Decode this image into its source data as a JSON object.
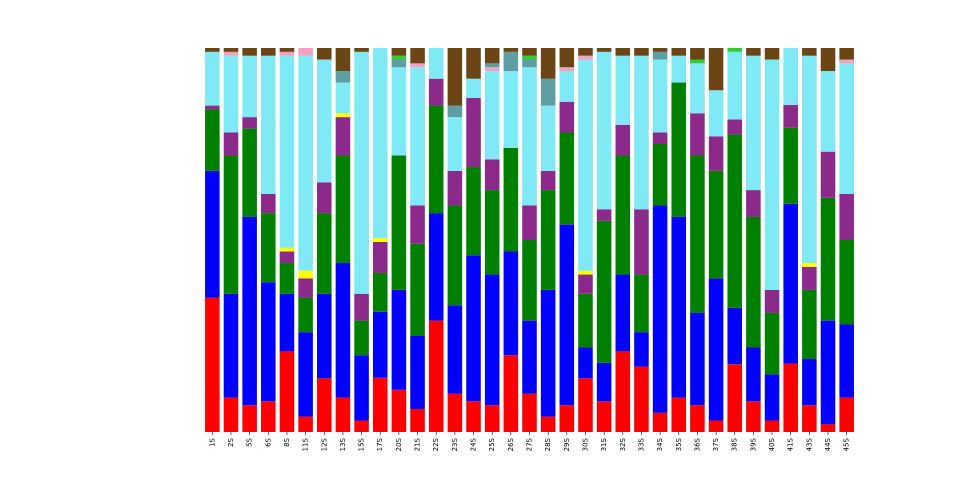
{
  "chart_data": {
    "type": "bar",
    "stacked": true,
    "normalized": true,
    "categories": [
      "1S",
      "2S",
      "5S",
      "6S",
      "8S",
      "11S",
      "12S",
      "13S",
      "15S",
      "17S",
      "20S",
      "21S",
      "22S",
      "23S",
      "24S",
      "25S",
      "26S",
      "27S",
      "28S",
      "29S",
      "30S",
      "31S",
      "32S",
      "33S",
      "34S",
      "35S",
      "36S",
      "37S",
      "38S",
      "39S",
      "40S",
      "41S",
      "43S",
      "44S",
      "45S"
    ],
    "title": "",
    "xlabel": "",
    "ylabel": "",
    "ylim": [
      0,
      1
    ],
    "grid": false,
    "legend": "none",
    "series": [
      {
        "color": "#ff0000",
        "values": [
          0.35,
          0.09,
          0.07,
          0.08,
          0.21,
          0.04,
          0.14,
          0.09,
          0.03,
          0.14,
          0.11,
          0.06,
          0.29,
          0.1,
          0.08,
          0.07,
          0.2,
          0.1,
          0.04,
          0.07,
          0.14,
          0.08,
          0.21,
          0.17,
          0.05,
          0.09,
          0.07,
          0.03,
          0.18,
          0.08,
          0.03,
          0.18,
          0.07,
          0.02,
          0.09
        ]
      },
      {
        "color": "#0000ff",
        "values": [
          0.33,
          0.27,
          0.49,
          0.31,
          0.15,
          0.22,
          0.22,
          0.35,
          0.17,
          0.17,
          0.26,
          0.19,
          0.28,
          0.23,
          0.38,
          0.34,
          0.27,
          0.19,
          0.33,
          0.47,
          0.08,
          0.1,
          0.2,
          0.09,
          0.54,
          0.47,
          0.24,
          0.37,
          0.15,
          0.14,
          0.12,
          0.42,
          0.12,
          0.27,
          0.19
        ]
      },
      {
        "color": "#008000",
        "values": [
          0.16,
          0.36,
          0.23,
          0.18,
          0.08,
          0.09,
          0.21,
          0.28,
          0.09,
          0.1,
          0.35,
          0.24,
          0.28,
          0.26,
          0.23,
          0.22,
          0.27,
          0.21,
          0.26,
          0.24,
          0.14,
          0.37,
          0.31,
          0.15,
          0.16,
          0.35,
          0.41,
          0.28,
          0.46,
          0.34,
          0.16,
          0.2,
          0.18,
          0.32,
          0.22
        ]
      },
      {
        "color": "#8b2a8b",
        "values": [
          0.01,
          0.06,
          0.03,
          0.05,
          0.03,
          0.05,
          0.08,
          0.1,
          0.07,
          0.08,
          0.0,
          0.1,
          0.07,
          0.09,
          0.18,
          0.08,
          0.0,
          0.09,
          0.05,
          0.08,
          0.05,
          0.03,
          0.08,
          0.17,
          0.03,
          0.0,
          0.11,
          0.09,
          0.04,
          0.07,
          0.06,
          0.06,
          0.06,
          0.12,
          0.12
        ]
      },
      {
        "color": "#ffff00",
        "values": [
          0,
          0,
          0,
          0,
          0.01,
          0.02,
          0,
          0.01,
          0,
          0.01,
          0,
          0,
          0,
          0,
          0,
          0,
          0,
          0,
          0,
          0,
          0.01,
          0,
          0,
          0,
          0,
          0,
          0,
          0,
          0,
          0,
          0,
          0,
          0.01,
          0,
          0
        ]
      },
      {
        "color": "#7fe9f5",
        "values": [
          0.14,
          0.2,
          0.16,
          0.36,
          0.5,
          0.56,
          0.32,
          0.08,
          0.63,
          0.49,
          0.23,
          0.36,
          0.08,
          0.14,
          0.05,
          0.23,
          0.2,
          0.36,
          0.17,
          0.08,
          0.55,
          0.41,
          0.18,
          0.4,
          0.19,
          0.07,
          0.13,
          0.12,
          0.18,
          0.35,
          0.6,
          0.15,
          0.54,
          0.21,
          0.34
        ]
      },
      {
        "color": "#f4a0c0",
        "values": [
          0,
          0.01,
          0,
          0,
          0.01,
          0.02,
          0,
          0,
          0,
          0,
          0,
          0.01,
          0,
          0,
          0,
          0.01,
          0,
          0,
          0,
          0.01,
          0.01,
          0,
          0,
          0,
          0,
          0,
          0,
          0,
          0,
          0,
          0,
          0,
          0,
          0,
          0.01
        ]
      },
      {
        "color": "#5f9ea0",
        "values": [
          0,
          0,
          0,
          0,
          0,
          0,
          0,
          0.03,
          0,
          0,
          0.02,
          0,
          0,
          0.03,
          0,
          0.01,
          0.05,
          0.02,
          0.07,
          0,
          0,
          0,
          0,
          0,
          0.02,
          0,
          0,
          0,
          0,
          0,
          0,
          0,
          0,
          0,
          0
        ]
      },
      {
        "color": "#32cd32",
        "values": [
          0,
          0,
          0,
          0,
          0,
          0,
          0,
          0,
          0,
          0,
          0.01,
          0,
          0,
          0,
          0,
          0,
          0,
          0.01,
          0,
          0,
          0,
          0,
          0,
          0,
          0,
          0,
          0.01,
          0,
          0.01,
          0,
          0,
          0,
          0,
          0,
          0
        ]
      },
      {
        "color": "#6b4514",
        "values": [
          0.01,
          0.01,
          0.02,
          0.02,
          0.01,
          0,
          0.03,
          0.06,
          0.01,
          0,
          0.02,
          0.04,
          0,
          0.15,
          0.08,
          0.04,
          0.01,
          0.02,
          0.08,
          0.05,
          0.02,
          0.01,
          0.02,
          0.02,
          0.01,
          0.02,
          0.03,
          0.11,
          0,
          0.02,
          0.03,
          0,
          0.02,
          0.06,
          0.03
        ]
      }
    ]
  }
}
